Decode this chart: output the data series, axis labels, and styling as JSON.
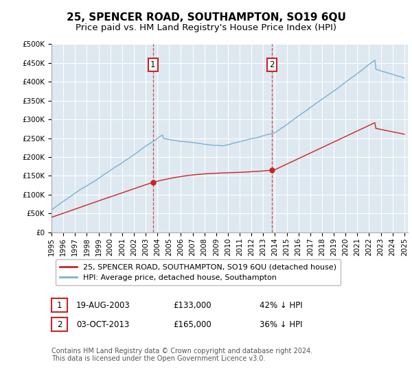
{
  "title": "25, SPENCER ROAD, SOUTHAMPTON, SO19 6QU",
  "subtitle": "Price paid vs. HM Land Registry's House Price Index (HPI)",
  "plot_bg_color": "#dde8f0",
  "grid_color": "#ffffff",
  "ylim": [
    0,
    500000
  ],
  "yticks": [
    0,
    50000,
    100000,
    150000,
    200000,
    250000,
    300000,
    350000,
    400000,
    450000,
    500000
  ],
  "sale1_date": 2003.63,
  "sale1_price": 133000,
  "sale2_date": 2013.75,
  "sale2_price": 165000,
  "hpi_color": "#7ab0d4",
  "sale_color": "#cc2222",
  "annotation1_label": "1",
  "annotation1_date": "19-AUG-2003",
  "annotation1_price": "£133,000",
  "annotation1_pct": "42% ↓ HPI",
  "annotation2_label": "2",
  "annotation2_date": "03-OCT-2013",
  "annotation2_price": "£165,000",
  "annotation2_pct": "36% ↓ HPI",
  "legend_label_sale": "25, SPENCER ROAD, SOUTHAMPTON, SO19 6QU (detached house)",
  "legend_label_hpi": "HPI: Average price, detached house, Southampton",
  "footer": "Contains HM Land Registry data © Crown copyright and database right 2024.\nThis data is licensed under the Open Government Licence v3.0.",
  "title_fontsize": 11,
  "subtitle_fontsize": 9.5,
  "tick_fontsize": 7.5,
  "legend_fontsize": 8,
  "footer_fontsize": 7
}
